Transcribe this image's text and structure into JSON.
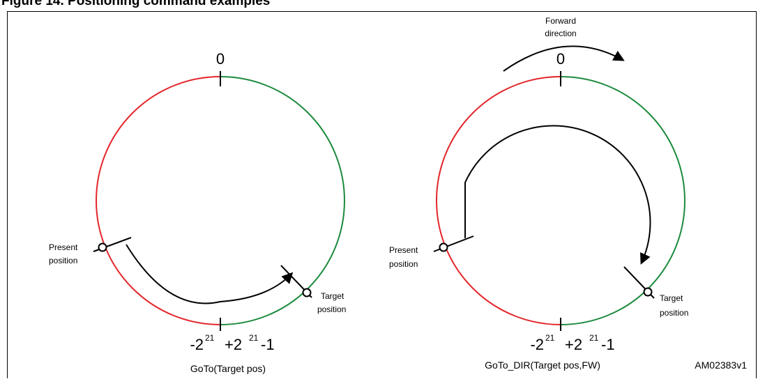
{
  "figure_caption": "Figure 14. Positioning command examples",
  "colors": {
    "red_arc": "#e3262b",
    "green_arc": "#1c8a3c",
    "line": "#000000"
  },
  "diagrams": [
    {
      "zero_label": "0",
      "neg_label": "-2",
      "neg_exp": "21",
      "pos_label": "+2",
      "pos_exp": "21",
      "pos_suffix": "-1",
      "present_line1": "Present",
      "present_line2": "position",
      "target_line1": "Target",
      "target_line2": "position",
      "command": "GoTo(Target pos)"
    },
    {
      "zero_label": "0",
      "neg_label": "-2",
      "neg_exp": "21",
      "pos_label": "+2",
      "pos_exp": "21",
      "pos_suffix": "-1",
      "present_line1": "Present",
      "present_line2": "position",
      "target_line1": "Target",
      "target_line2": "position",
      "forward_line1": "Forward",
      "forward_line2": "direction",
      "command": "GoTo_DIR(Target pos,FW)"
    }
  ],
  "figure_id": "AM02383v1"
}
